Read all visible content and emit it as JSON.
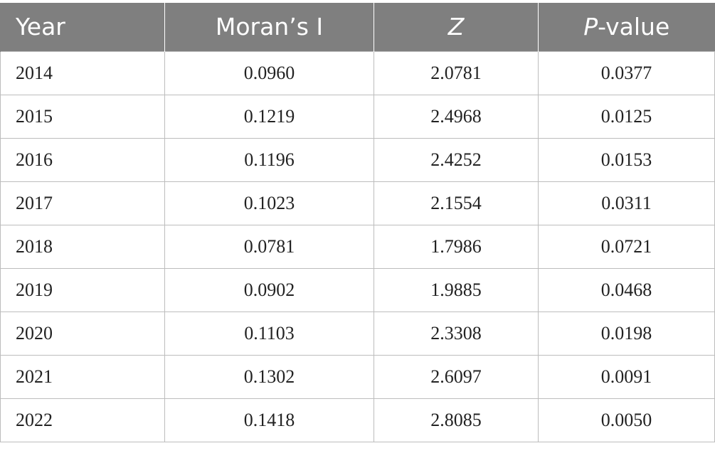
{
  "table": {
    "headers": {
      "year": "Year",
      "moran": "Moran’s I",
      "z": "Z",
      "p_italic": "P",
      "p_suffix": "-value"
    },
    "rows": [
      {
        "year": "2014",
        "moran": "0.0960",
        "z": "2.0781",
        "p": "0.0377"
      },
      {
        "year": "2015",
        "moran": "0.1219",
        "z": "2.4968",
        "p": "0.0125"
      },
      {
        "year": "2016",
        "moran": "0.1196",
        "z": "2.4252",
        "p": "0.0153"
      },
      {
        "year": "2017",
        "moran": "0.1023",
        "z": "2.1554",
        "p": "0.0311"
      },
      {
        "year": "2018",
        "moran": "0.0781",
        "z": "1.7986",
        "p": "0.0721"
      },
      {
        "year": "2019",
        "moran": "0.0902",
        "z": "1.9885",
        "p": "0.0468"
      },
      {
        "year": "2020",
        "moran": "0.1103",
        "z": "2.3308",
        "p": "0.0198"
      },
      {
        "year": "2021",
        "moran": "0.1302",
        "z": "2.6097",
        "p": "0.0091"
      },
      {
        "year": "2022",
        "moran": "0.1418",
        "z": "2.8085",
        "p": "0.0050"
      }
    ]
  }
}
